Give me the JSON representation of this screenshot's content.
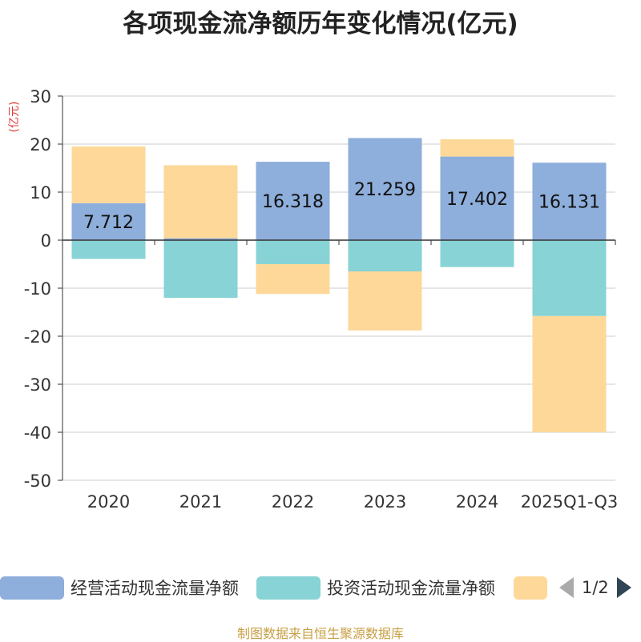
{
  "chart_data": {
    "type": "bar",
    "stacked": true,
    "title": "各项现金流净额历年变化情况(亿元)",
    "ylabel": "(亿元)",
    "xlabel": "",
    "ylim": [
      -50,
      30
    ],
    "yticks": [
      30,
      20,
      10,
      0,
      -10,
      -20,
      -30,
      -40,
      -50
    ],
    "categories": [
      "2020",
      "2021",
      "2022",
      "2023",
      "2024",
      "2025Q1-Q3"
    ],
    "series": [
      {
        "name": "经营活动现金流量净额",
        "color": "#8eaedb",
        "values": [
          7.712,
          0.4,
          16.318,
          21.259,
          17.402,
          16.131
        ],
        "labels": [
          "7.712",
          "",
          "16.318",
          "21.259",
          "17.402",
          "16.131"
        ]
      },
      {
        "name": "投资活动现金流量净额",
        "color": "#88d3d5",
        "values": [
          -3.9,
          -12.0,
          -5.0,
          -6.5,
          -5.6,
          -15.8
        ]
      },
      {
        "name": "",
        "color": "#fdd898",
        "values": [
          11.8,
          15.2,
          -6.2,
          -12.3,
          3.6,
          -24.2
        ]
      }
    ],
    "legend_position": "bottom",
    "grid": true
  },
  "legend": {
    "items": [
      {
        "label": "经营活动现金流量净额",
        "color": "#8eaedb"
      },
      {
        "label": "投资活动现金流量净额",
        "color": "#88d3d5"
      },
      {
        "label": "",
        "color": "#fdd898"
      }
    ],
    "page": "1/2"
  },
  "source": "制图数据来自恒生聚源数据库"
}
